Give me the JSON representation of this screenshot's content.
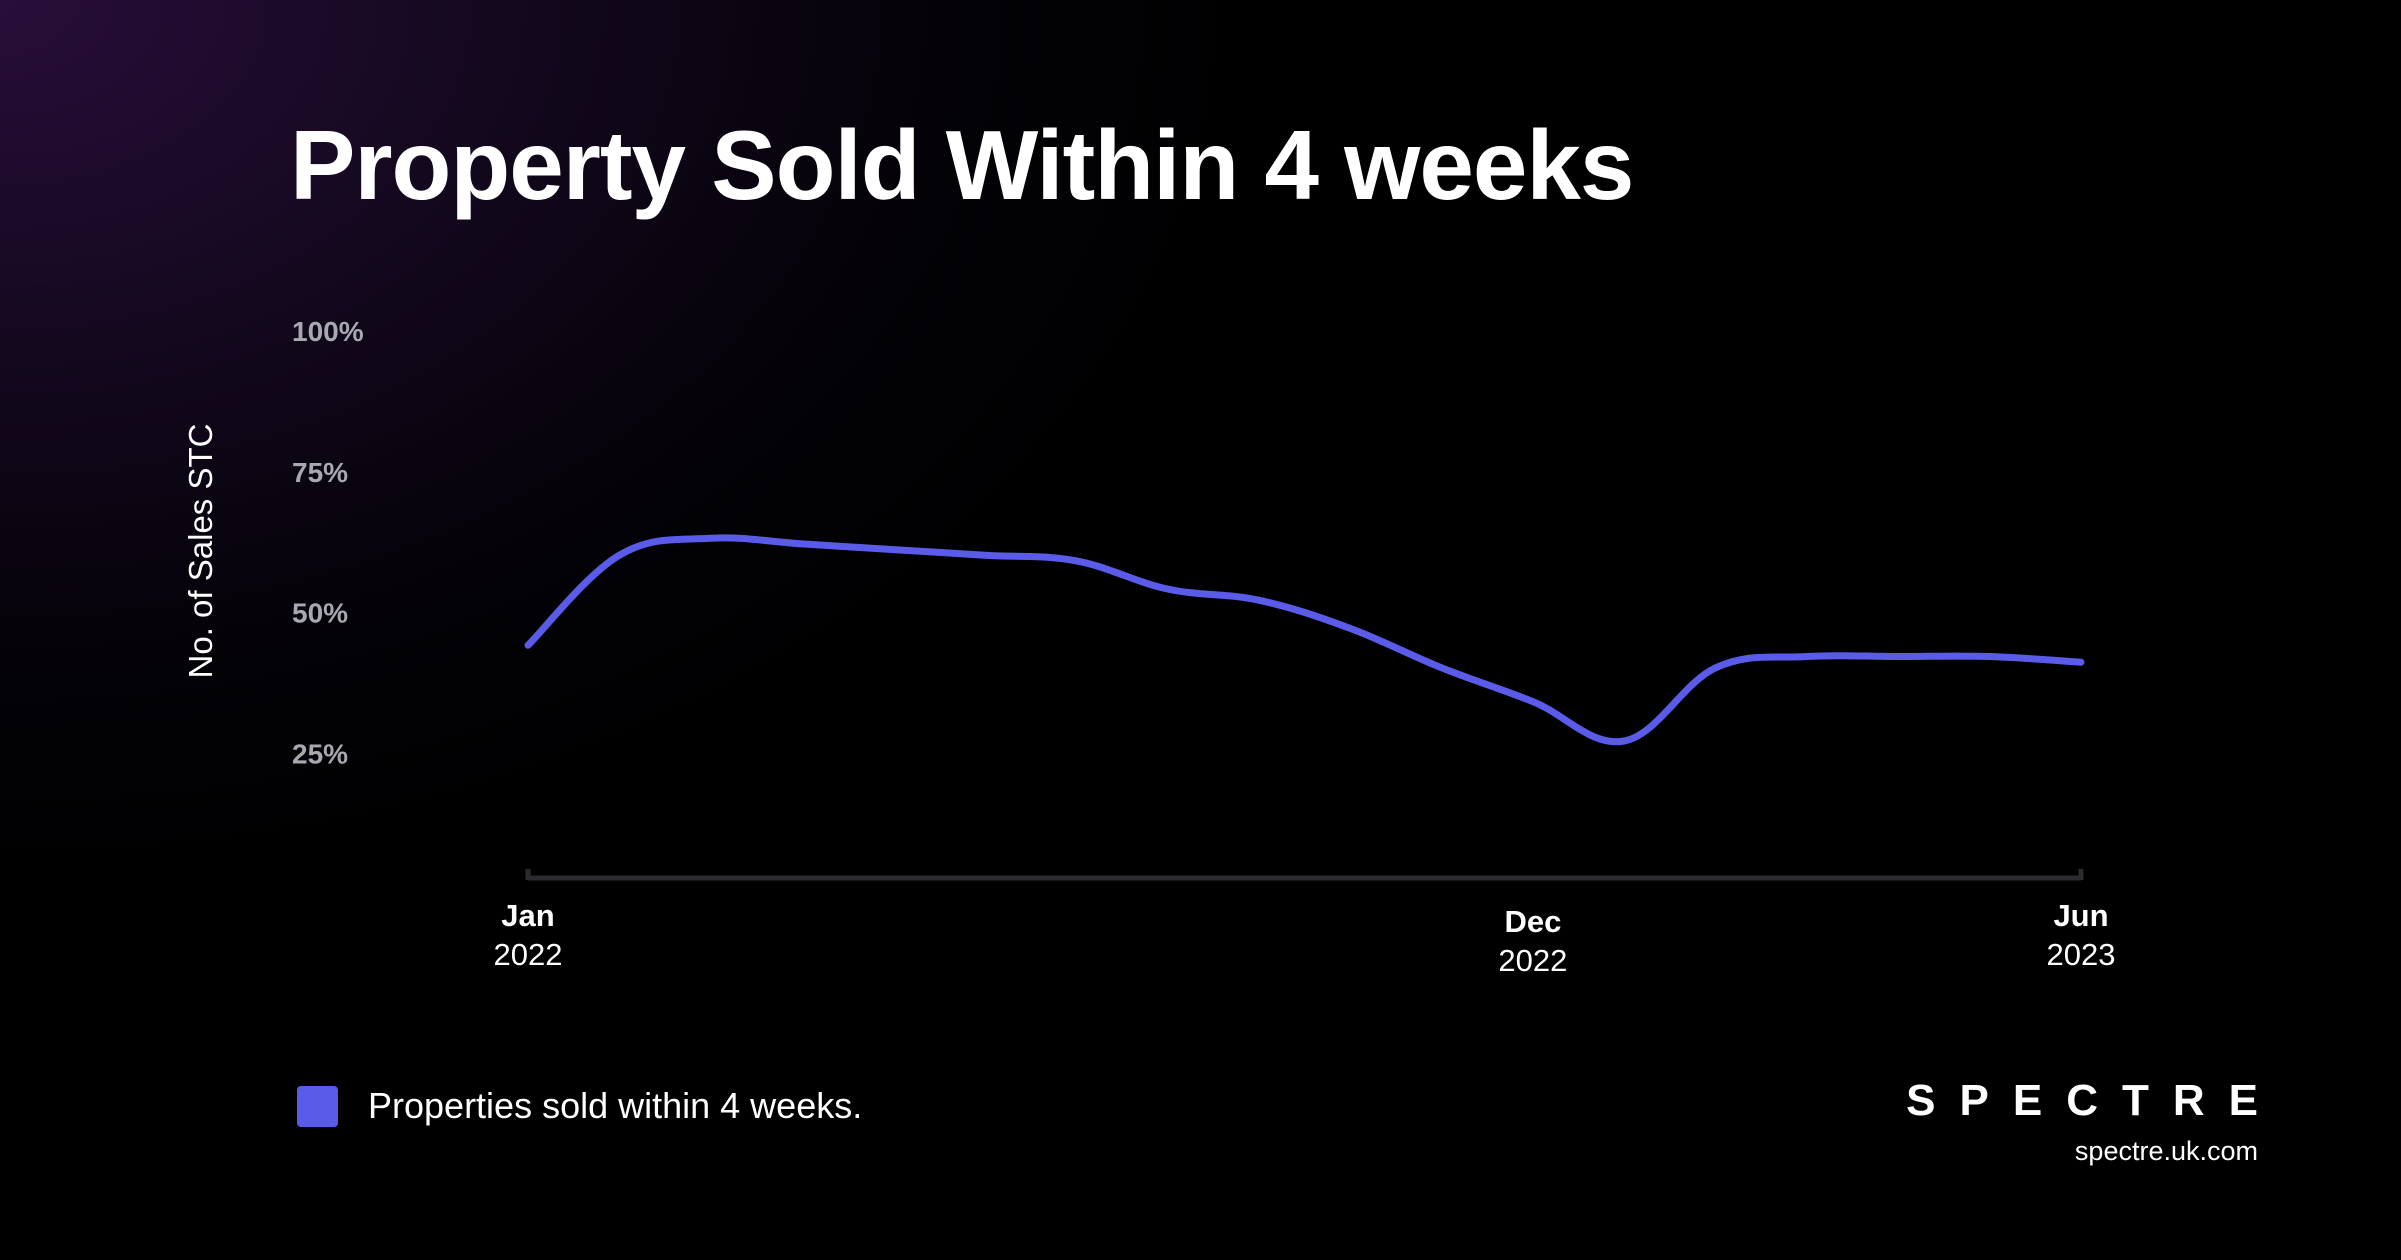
{
  "title": "Property Sold Within 4 weeks",
  "brand": {
    "logo_text": "SPECTRE",
    "url": "spectre.uk.com"
  },
  "colors": {
    "series": "#5b5bea",
    "tick_label": "#a8a8b0",
    "axis": "#2c2c30",
    "background": "#000000"
  },
  "chart_data": {
    "type": "line",
    "title": "Property Sold Within 4 weeks",
    "xlabel": "",
    "ylabel": "No. of Sales STC",
    "ylim": [
      0,
      100
    ],
    "grid": false,
    "legend_position": "bottom-left",
    "y_ticks": [
      {
        "value": 100,
        "label": "100%"
      },
      {
        "value": 75,
        "label": "75%"
      },
      {
        "value": 50,
        "label": "50%"
      },
      {
        "value": 25,
        "label": "25%"
      }
    ],
    "x_ticks": [
      {
        "x": "2022-01",
        "label": "Jan",
        "sublabel": "2022"
      },
      {
        "x": "2022-12",
        "label": "Dec",
        "sublabel": "2022"
      },
      {
        "x": "2023-06",
        "label": "Jun",
        "sublabel": "2023"
      }
    ],
    "x": [
      "2022-01",
      "2022-02",
      "2022-03",
      "2022-04",
      "2022-05",
      "2022-06",
      "2022-07",
      "2022-08",
      "2022-09",
      "2022-10",
      "2022-11",
      "2022-12",
      "2023-01",
      "2023-02",
      "2023-03",
      "2023-04",
      "2023-05",
      "2023-06"
    ],
    "series": [
      {
        "name": "Properties sold within 4 weeks.",
        "color": "#5b5bea",
        "values": [
          44,
          60,
          63,
          62,
          61,
          60,
          59,
          54,
          52,
          47,
          40,
          34,
          27,
          40,
          42,
          42,
          42,
          41
        ]
      }
    ]
  }
}
